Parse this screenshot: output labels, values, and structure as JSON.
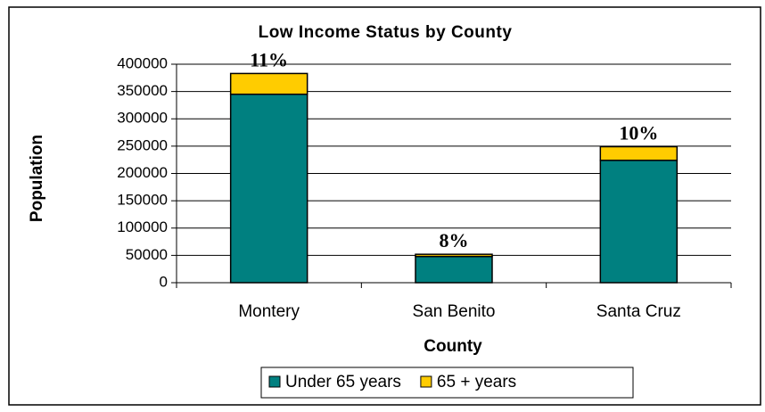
{
  "chart_data": {
    "type": "stacked_bar",
    "title": "Low Income Status by County",
    "x_label": "County",
    "y_label": "Population",
    "categories": [
      "Montery",
      "San Benito",
      "Santa Cruz"
    ],
    "series": [
      {
        "name": "Under 65 years",
        "color": "#008080",
        "values": [
          345000,
          48000,
          224000
        ]
      },
      {
        "name": "65 + years",
        "color": "#ffcc00",
        "values": [
          38000,
          4000,
          25000
        ]
      }
    ],
    "annotations": [
      "11%",
      "8%",
      "10%"
    ],
    "ylim": [
      0,
      400000
    ],
    "yticks": [
      0,
      50000,
      100000,
      150000,
      200000,
      250000,
      300000,
      350000,
      400000
    ],
    "grid": true,
    "legend": "bottom"
  }
}
